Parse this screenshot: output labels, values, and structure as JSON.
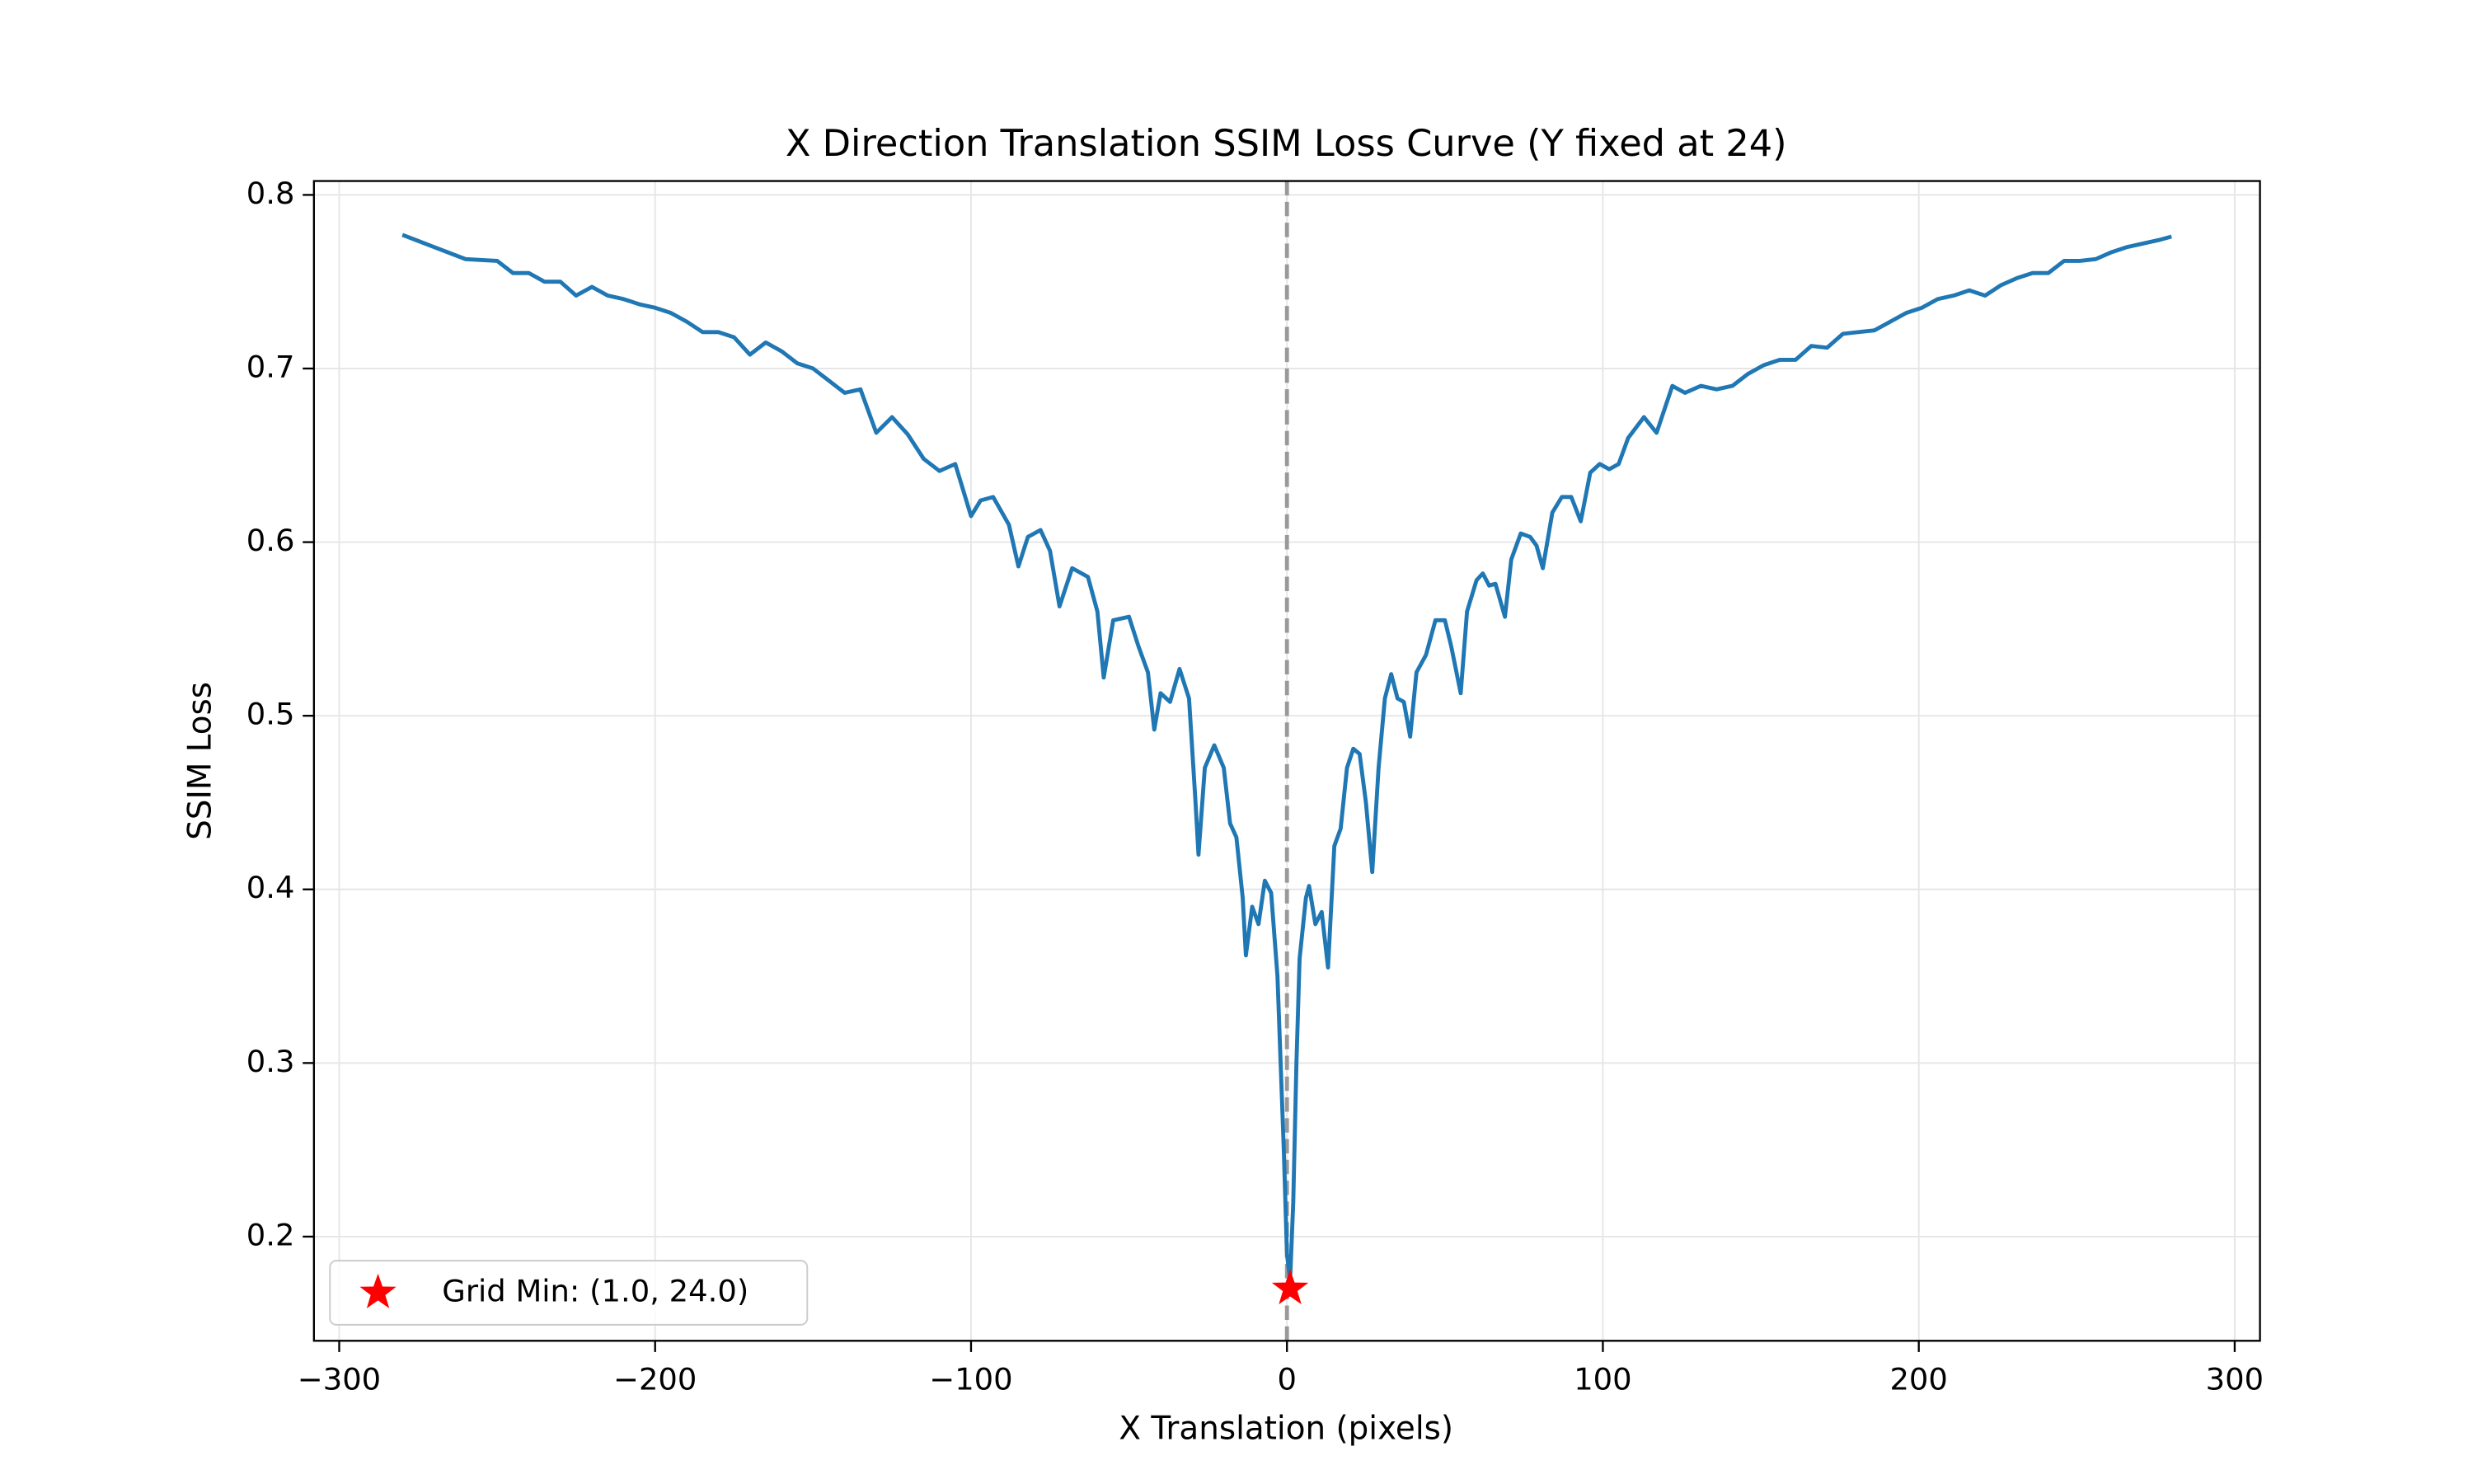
{
  "chart_data": {
    "type": "line",
    "title": "X Direction Translation SSIM Loss Curve (Y fixed at 24)",
    "xlabel": "X Translation (pixels)",
    "ylabel": "SSIM Loss",
    "xlim": [
      -308,
      308
    ],
    "ylim": [
      0.14,
      0.808
    ],
    "xticks": [
      {
        "value": -300,
        "label": "−300"
      },
      {
        "value": -200,
        "label": "−200"
      },
      {
        "value": -100,
        "label": "−100"
      },
      0,
      100,
      200,
      300
    ],
    "yticks": [
      0.2,
      0.3,
      0.4,
      0.5,
      0.6,
      0.7,
      0.8
    ],
    "grid": true,
    "vline": {
      "x": 0,
      "color": "#999999",
      "style": "dashed"
    },
    "x": [
      -280,
      -270,
      -260,
      -250,
      -245,
      -240,
      -235,
      -230,
      -225,
      -220,
      -215,
      -210,
      -205,
      -200,
      -195,
      -190,
      -185,
      -180,
      -175,
      -170,
      -165,
      -160,
      -155,
      -150,
      -145,
      -140,
      -135,
      -130,
      -125,
      -120,
      -115,
      -110,
      -105,
      -100,
      -97,
      -93,
      -88,
      -85,
      -82,
      -78,
      -75,
      -72,
      -68,
      -63,
      -60,
      -58,
      -55,
      -50,
      -47,
      -44,
      -42,
      -40,
      -37,
      -34,
      -31,
      -29,
      -28,
      -26,
      -23,
      -20,
      -18,
      -16,
      -14,
      -13,
      -11,
      -9,
      -7,
      -5,
      -3,
      -1,
      0,
      1,
      2,
      3,
      4,
      6,
      7,
      9,
      11,
      13,
      15,
      17,
      19,
      21,
      23,
      25,
      27,
      29,
      31,
      33,
      35,
      37,
      39,
      41,
      44,
      47,
      50,
      52,
      55,
      57,
      60,
      62,
      64,
      66,
      69,
      71,
      74,
      77,
      79,
      81,
      84,
      87,
      90,
      93,
      96,
      99,
      102,
      105,
      108,
      113,
      117,
      122,
      126,
      131,
      136,
      141,
      146,
      151,
      156,
      161,
      166,
      171,
      176,
      181,
      186,
      191,
      196,
      201,
      206,
      211,
      216,
      221,
      226,
      231,
      236,
      241,
      246,
      251,
      256,
      261,
      266,
      271,
      276,
      280
    ],
    "series": [
      {
        "color": "#1f77b4",
        "values": [
          0.777,
          0.77,
          0.763,
          0.762,
          0.755,
          0.755,
          0.75,
          0.75,
          0.742,
          0.747,
          0.742,
          0.74,
          0.737,
          0.735,
          0.732,
          0.727,
          0.721,
          0.721,
          0.718,
          0.708,
          0.715,
          0.71,
          0.703,
          0.7,
          0.693,
          0.686,
          0.688,
          0.663,
          0.672,
          0.662,
          0.648,
          0.641,
          0.645,
          0.615,
          0.624,
          0.626,
          0.61,
          0.586,
          0.603,
          0.607,
          0.595,
          0.563,
          0.585,
          0.58,
          0.56,
          0.522,
          0.555,
          0.557,
          0.54,
          0.525,
          0.492,
          0.513,
          0.508,
          0.527,
          0.51,
          0.452,
          0.42,
          0.47,
          0.483,
          0.47,
          0.438,
          0.43,
          0.395,
          0.362,
          0.39,
          0.38,
          0.405,
          0.398,
          0.35,
          0.25,
          0.19,
          0.175,
          0.22,
          0.3,
          0.36,
          0.395,
          0.402,
          0.38,
          0.387,
          0.355,
          0.425,
          0.435,
          0.47,
          0.481,
          0.478,
          0.45,
          0.41,
          0.47,
          0.51,
          0.524,
          0.51,
          0.508,
          0.488,
          0.525,
          0.535,
          0.555,
          0.555,
          0.54,
          0.513,
          0.56,
          0.578,
          0.582,
          0.575,
          0.576,
          0.557,
          0.59,
          0.605,
          0.603,
          0.598,
          0.585,
          0.617,
          0.626,
          0.626,
          0.612,
          0.64,
          0.645,
          0.642,
          0.645,
          0.66,
          0.672,
          0.663,
          0.69,
          0.686,
          0.69,
          0.688,
          0.69,
          0.697,
          0.702,
          0.705,
          0.705,
          0.713,
          0.712,
          0.72,
          0.721,
          0.722,
          0.727,
          0.732,
          0.735,
          0.74,
          0.742,
          0.745,
          0.742,
          0.748,
          0.752,
          0.755,
          0.755,
          0.762,
          0.762,
          0.763,
          0.767,
          0.77,
          0.772,
          0.774,
          0.776
        ]
      }
    ],
    "marker": {
      "label": "Grid Min: (1.0, 24.0)",
      "x": 1,
      "y": 0.17,
      "color": "#ff0000"
    },
    "legend": "lower left"
  }
}
